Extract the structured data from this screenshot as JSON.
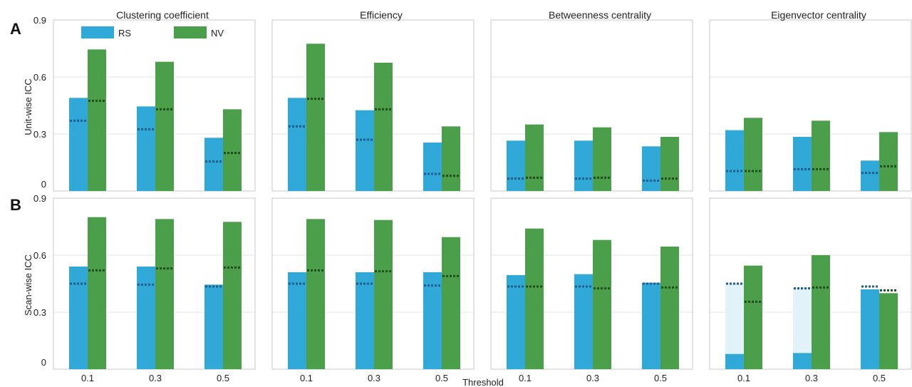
{
  "colors": {
    "RS": "#31a9d8",
    "NV": "#4c9f4a",
    "RS_dots": "#1f5e8c",
    "NV_dots": "#1e4d1c",
    "RS_faded": "#e2f2f9",
    "frame": "#c8c8c8",
    "grid": "#e6e6e6"
  },
  "panel_labels": [
    "A",
    "B"
  ],
  "row_ylabels": [
    "Unit-wise ICC",
    "Scan-wise ICC"
  ],
  "column_titles": [
    "Clustering coefficient",
    "Efficiency",
    "Betweenness centrality",
    "Eigenvector centrality"
  ],
  "legend": [
    "RS",
    "NV"
  ],
  "xlabel": "Threshold",
  "ytick_labels": [
    "0",
    "0.3",
    "0.6",
    "0.9"
  ],
  "chart_data": {
    "type": "bar",
    "categories": [
      "0.1",
      "0.3",
      "0.5"
    ],
    "ylim": [
      0,
      0.9
    ],
    "yticks": [
      0,
      0.3,
      0.6,
      0.9
    ],
    "xlabel": "Threshold",
    "grid": true,
    "legend_position": "top-left of first panel",
    "note_dotted_lines": "dotted horizontal line drawn on each bar at second value",
    "panels": [
      {
        "row": "Unit-wise ICC",
        "title": "Clustering coefficient",
        "series": [
          {
            "name": "RS",
            "values": [
              0.49,
              0.445,
              0.28
            ],
            "dotted": [
              0.37,
              0.325,
              0.155
            ]
          },
          {
            "name": "NV",
            "values": [
              0.745,
              0.68,
              0.43
            ],
            "dotted": [
              0.475,
              0.43,
              0.2
            ]
          }
        ]
      },
      {
        "row": "Unit-wise ICC",
        "title": "Efficiency",
        "series": [
          {
            "name": "RS",
            "values": [
              0.49,
              0.425,
              0.255
            ],
            "dotted": [
              0.34,
              0.27,
              0.09
            ]
          },
          {
            "name": "NV",
            "values": [
              0.775,
              0.675,
              0.34
            ],
            "dotted": [
              0.485,
              0.43,
              0.08
            ]
          }
        ]
      },
      {
        "row": "Unit-wise ICC",
        "title": "Betweenness centrality",
        "series": [
          {
            "name": "RS",
            "values": [
              0.265,
              0.265,
              0.235
            ],
            "dotted": [
              0.065,
              0.065,
              0.055
            ]
          },
          {
            "name": "NV",
            "values": [
              0.35,
              0.335,
              0.285
            ],
            "dotted": [
              0.07,
              0.07,
              0.065
            ]
          }
        ]
      },
      {
        "row": "Unit-wise ICC",
        "title": "Eigenvector centrality",
        "series": [
          {
            "name": "RS",
            "values": [
              0.32,
              0.285,
              0.16
            ],
            "dotted": [
              0.105,
              0.115,
              0.095
            ]
          },
          {
            "name": "NV",
            "values": [
              0.385,
              0.37,
              0.31
            ],
            "dotted": [
              0.105,
              0.115,
              0.13
            ]
          }
        ]
      },
      {
        "row": "Scan-wise ICC",
        "title": "Clustering coefficient",
        "series": [
          {
            "name": "RS",
            "values": [
              0.54,
              0.54,
              0.445
            ],
            "dotted": [
              0.45,
              0.445,
              0.435
            ]
          },
          {
            "name": "NV",
            "values": [
              0.8,
              0.79,
              0.775
            ],
            "dotted": [
              0.52,
              0.53,
              0.535
            ]
          }
        ]
      },
      {
        "row": "Scan-wise ICC",
        "title": "Efficiency",
        "series": [
          {
            "name": "RS",
            "values": [
              0.51,
              0.51,
              0.51
            ],
            "dotted": [
              0.45,
              0.45,
              0.44
            ]
          },
          {
            "name": "NV",
            "values": [
              0.79,
              0.785,
              0.695
            ],
            "dotted": [
              0.52,
              0.515,
              0.49
            ]
          }
        ]
      },
      {
        "row": "Scan-wise ICC",
        "title": "Betweenness centrality",
        "series": [
          {
            "name": "RS",
            "values": [
              0.495,
              0.5,
              0.455
            ],
            "dotted": [
              0.435,
              0.435,
              0.45
            ]
          },
          {
            "name": "NV",
            "values": [
              0.74,
              0.68,
              0.645
            ],
            "dotted": [
              0.435,
              0.425,
              0.43
            ]
          }
        ]
      },
      {
        "row": "Scan-wise ICC",
        "title": "Eigenvector centrality",
        "series": [
          {
            "name": "RS",
            "values": [
              0.08,
              0.085,
              0.42
            ],
            "dotted": [
              0.45,
              0.425,
              0.435
            ],
            "faded_to_dotted": [
              true,
              true,
              false
            ]
          },
          {
            "name": "NV",
            "values": [
              0.545,
              0.6,
              0.4
            ],
            "dotted": [
              0.355,
              0.43,
              0.415
            ]
          }
        ]
      }
    ]
  }
}
